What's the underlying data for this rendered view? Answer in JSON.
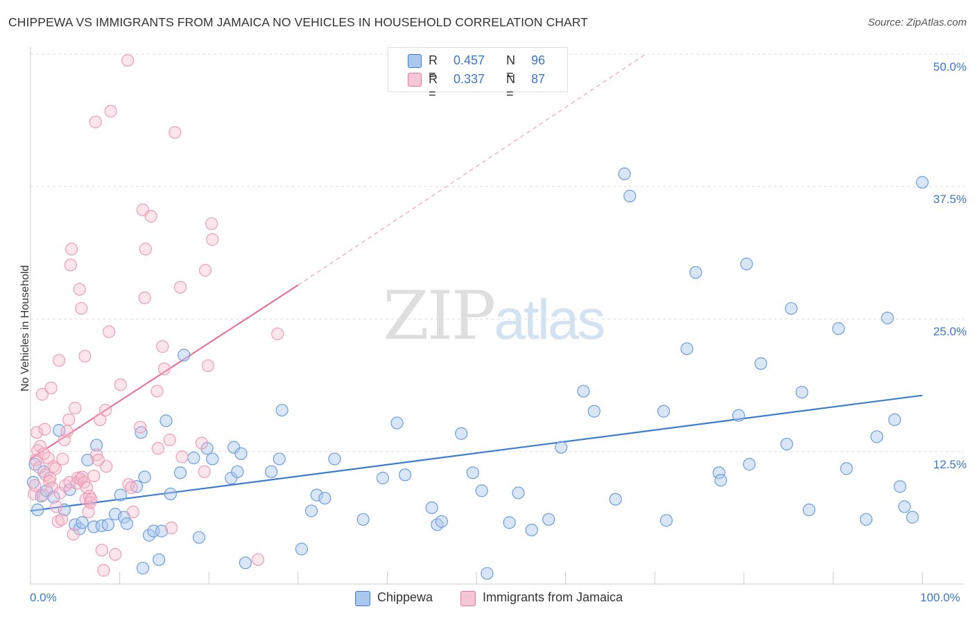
{
  "header": {
    "title": "CHIPPEWA VS IMMIGRANTS FROM JAMAICA NO VEHICLES IN HOUSEHOLD CORRELATION CHART",
    "source": "Source: ZipAtlas.com"
  },
  "watermark": {
    "zip": "ZIP",
    "atlas": "atlas"
  },
  "legend": {
    "rows": [
      {
        "r_key": "R =",
        "r_val": "0.457",
        "n_key": "N =",
        "n_val": "96"
      },
      {
        "r_key": "R =",
        "r_val": "0.337",
        "n_key": "N =",
        "n_val": "87"
      }
    ]
  },
  "colors": {
    "blue": "#3a7bd5",
    "blue_fill": "#aac8ee",
    "pink": "#e8749a",
    "pink_fill": "#f5b6c9",
    "tick_text": "#3b78c9",
    "grid": "#dddddd"
  },
  "chart_data": {
    "type": "scatter",
    "title": "CHIPPEWA VS IMMIGRANTS FROM JAMAICA NO VEHICLES IN HOUSEHOLD CORRELATION CHART",
    "xlabel": "",
    "ylabel": "No Vehicles in Household",
    "xlim": [
      0,
      100
    ],
    "ylim": [
      0,
      50
    ],
    "x_tick_labels": [
      "0.0%",
      "100.0%"
    ],
    "y_ticks": [
      12.5,
      25.0,
      37.5,
      50.0
    ],
    "y_tick_labels": [
      "12.5%",
      "25.0%",
      "37.5%",
      "50.0%"
    ],
    "grid": true,
    "legend_position": "top-center",
    "series": [
      {
        "name": "Chippewa",
        "color": "#3a7bd5",
        "r": 0.457,
        "n": 96,
        "trend": {
          "x": [
            0,
            100
          ],
          "y": [
            6.9,
            17.8
          ]
        },
        "points": [
          [
            0.3,
            9.6
          ],
          [
            0.5,
            11.3
          ],
          [
            0.8,
            7.0
          ],
          [
            1.2,
            8.3
          ],
          [
            1.5,
            10.6
          ],
          [
            1.8,
            8.8
          ],
          [
            2.6,
            8.2
          ],
          [
            3.2,
            14.5
          ],
          [
            3.8,
            7.0
          ],
          [
            4.4,
            8.9
          ],
          [
            5.0,
            5.6
          ],
          [
            5.5,
            5.2
          ],
          [
            5.8,
            5.8
          ],
          [
            6.4,
            11.7
          ],
          [
            7.1,
            5.4
          ],
          [
            7.4,
            13.1
          ],
          [
            8.0,
            5.5
          ],
          [
            8.7,
            5.6
          ],
          [
            9.5,
            6.6
          ],
          [
            10.1,
            8.4
          ],
          [
            10.5,
            6.3
          ],
          [
            10.8,
            5.7
          ],
          [
            11.9,
            9.2
          ],
          [
            12.4,
            14.3
          ],
          [
            12.6,
            1.5
          ],
          [
            12.8,
            10.1
          ],
          [
            13.3,
            4.6
          ],
          [
            13.8,
            5.0
          ],
          [
            14.4,
            2.3
          ],
          [
            14.7,
            5.0
          ],
          [
            15.2,
            15.4
          ],
          [
            15.7,
            8.5
          ],
          [
            16.8,
            10.5
          ],
          [
            17.2,
            21.6
          ],
          [
            18.3,
            11.9
          ],
          [
            18.9,
            4.4
          ],
          [
            19.8,
            12.8
          ],
          [
            20.4,
            11.8
          ],
          [
            22.5,
            10.0
          ],
          [
            22.8,
            12.9
          ],
          [
            23.2,
            10.6
          ],
          [
            23.6,
            12.3
          ],
          [
            24.1,
            2.0
          ],
          [
            27.0,
            10.6
          ],
          [
            27.9,
            11.8
          ],
          [
            28.2,
            16.4
          ],
          [
            30.4,
            3.3
          ],
          [
            31.5,
            6.9
          ],
          [
            32.1,
            8.4
          ],
          [
            33.0,
            8.1
          ],
          [
            34.1,
            11.8
          ],
          [
            37.3,
            6.1
          ],
          [
            39.5,
            10.0
          ],
          [
            41.1,
            15.2
          ],
          [
            42.0,
            10.3
          ],
          [
            45.0,
            7.2
          ],
          [
            45.6,
            5.6
          ],
          [
            46.1,
            5.9
          ],
          [
            48.3,
            14.2
          ],
          [
            49.6,
            10.5
          ],
          [
            50.6,
            8.8
          ],
          [
            51.2,
            1.0
          ],
          [
            53.7,
            5.8
          ],
          [
            54.7,
            8.6
          ],
          [
            56.2,
            5.1
          ],
          [
            58.1,
            6.1
          ],
          [
            59.5,
            12.9
          ],
          [
            62.0,
            18.2
          ],
          [
            63.2,
            16.3
          ],
          [
            65.6,
            8.0
          ],
          [
            66.6,
            38.7
          ],
          [
            67.2,
            36.6
          ],
          [
            71.0,
            16.3
          ],
          [
            71.3,
            6.0
          ],
          [
            73.6,
            22.2
          ],
          [
            74.6,
            29.4
          ],
          [
            77.2,
            10.5
          ],
          [
            77.4,
            9.8
          ],
          [
            79.4,
            15.9
          ],
          [
            80.3,
            30.2
          ],
          [
            80.6,
            11.3
          ],
          [
            81.9,
            20.8
          ],
          [
            84.8,
            13.2
          ],
          [
            85.3,
            26.0
          ],
          [
            86.5,
            18.1
          ],
          [
            87.3,
            7.0
          ],
          [
            90.6,
            24.1
          ],
          [
            91.5,
            10.9
          ],
          [
            93.7,
            6.1
          ],
          [
            94.9,
            13.9
          ],
          [
            96.1,
            25.1
          ],
          [
            96.9,
            15.5
          ],
          [
            97.5,
            9.2
          ],
          [
            98.0,
            7.3
          ],
          [
            98.9,
            6.3
          ],
          [
            100.0,
            37.9
          ]
        ]
      },
      {
        "name": "Immigrants from Jamaica",
        "color": "#e8749a",
        "r": 0.337,
        "n": 87,
        "trend": {
          "x": [
            0,
            30
          ],
          "y": [
            11.8,
            28.2
          ]
        },
        "trend_extension": {
          "x": [
            30,
            69
          ],
          "y": [
            28.2,
            50.0
          ]
        },
        "points": [
          [
            0.4,
            8.5
          ],
          [
            0.5,
            9.3
          ],
          [
            0.6,
            11.7
          ],
          [
            0.7,
            14.3
          ],
          [
            0.8,
            12.6
          ],
          [
            1.0,
            11.0
          ],
          [
            1.1,
            13.0
          ],
          [
            1.3,
            17.9
          ],
          [
            1.4,
            8.4
          ],
          [
            1.5,
            12.3
          ],
          [
            1.6,
            14.6
          ],
          [
            1.7,
            10.3
          ],
          [
            2.0,
            11.9
          ],
          [
            2.1,
            9.7
          ],
          [
            2.2,
            10.0
          ],
          [
            2.3,
            18.5
          ],
          [
            2.4,
            9.1
          ],
          [
            2.6,
            11.1
          ],
          [
            2.8,
            10.9
          ],
          [
            2.9,
            7.3
          ],
          [
            3.1,
            5.9
          ],
          [
            3.2,
            21.1
          ],
          [
            3.3,
            8.6
          ],
          [
            3.5,
            6.1
          ],
          [
            3.6,
            11.8
          ],
          [
            3.8,
            13.6
          ],
          [
            3.9,
            9.3
          ],
          [
            4.1,
            14.4
          ],
          [
            4.3,
            15.5
          ],
          [
            4.4,
            9.6
          ],
          [
            4.5,
            30.1
          ],
          [
            4.6,
            31.6
          ],
          [
            4.8,
            4.7
          ],
          [
            5.0,
            16.6
          ],
          [
            5.2,
            9.5
          ],
          [
            5.3,
            10.0
          ],
          [
            5.5,
            27.8
          ],
          [
            5.6,
            9.9
          ],
          [
            5.7,
            26.0
          ],
          [
            5.8,
            10.1
          ],
          [
            6.0,
            9.6
          ],
          [
            6.1,
            21.5
          ],
          [
            6.2,
            8.0
          ],
          [
            6.3,
            9.1
          ],
          [
            6.5,
            6.8
          ],
          [
            6.6,
            8.3
          ],
          [
            6.7,
            7.7
          ],
          [
            6.8,
            8.0
          ],
          [
            7.1,
            10.2
          ],
          [
            7.3,
            43.6
          ],
          [
            7.4,
            12.2
          ],
          [
            7.6,
            11.7
          ],
          [
            7.8,
            15.5
          ],
          [
            8.0,
            3.2
          ],
          [
            8.2,
            1.3
          ],
          [
            8.4,
            16.4
          ],
          [
            8.5,
            11.1
          ],
          [
            8.8,
            23.8
          ],
          [
            9.0,
            44.6
          ],
          [
            9.5,
            2.8
          ],
          [
            10.1,
            18.8
          ],
          [
            10.9,
            49.4
          ],
          [
            11.0,
            9.4
          ],
          [
            11.3,
            9.1
          ],
          [
            11.5,
            6.8
          ],
          [
            12.3,
            14.8
          ],
          [
            12.6,
            35.3
          ],
          [
            12.8,
            27.0
          ],
          [
            12.9,
            31.6
          ],
          [
            13.5,
            34.7
          ],
          [
            14.2,
            18.2
          ],
          [
            14.3,
            12.8
          ],
          [
            14.8,
            22.4
          ],
          [
            15.0,
            20.3
          ],
          [
            15.6,
            13.6
          ],
          [
            15.8,
            5.3
          ],
          [
            16.2,
            42.6
          ],
          [
            16.8,
            28.0
          ],
          [
            17.0,
            12.0
          ],
          [
            19.2,
            13.3
          ],
          [
            19.5,
            10.6
          ],
          [
            19.6,
            29.6
          ],
          [
            19.9,
            20.6
          ],
          [
            20.3,
            34.0
          ],
          [
            20.4,
            32.5
          ],
          [
            25.5,
            2.3
          ],
          [
            27.7,
            23.6
          ]
        ]
      }
    ]
  },
  "bottom_legend": {
    "items": [
      {
        "label": "Chippewa"
      },
      {
        "label": "Immigrants from Jamaica"
      }
    ]
  }
}
